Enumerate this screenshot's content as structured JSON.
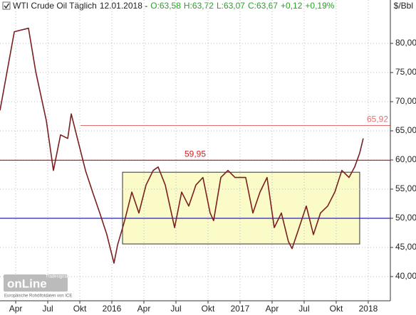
{
  "chart_data": {
    "type": "line",
    "title_parts": [
      {
        "text": "WTI Crude Oil Täglich",
        "color": "#222"
      },
      {
        "text": "12.01.2018 -",
        "color": "#222"
      },
      {
        "text": "O:63,58",
        "color": "#2aa02a"
      },
      {
        "text": "H:63,72",
        "color": "#2aa02a"
      },
      {
        "text": "L:63,07",
        "color": "#2aa02a"
      },
      {
        "text": "C:63,67",
        "color": "#2aa02a"
      },
      {
        "text": "+0,12",
        "color": "#2aa02a"
      },
      {
        "text": "+0,19%",
        "color": "#2aa02a"
      }
    ],
    "unit_label": "$/Bbl",
    "x": [
      -1.47,
      -0.13,
      1.2,
      1.87,
      2.87,
      3.53,
      4.2,
      4.87,
      5.2,
      5.87,
      6.53,
      7.2,
      7.87,
      8.53,
      9.2,
      9.53,
      10.2,
      10.87,
      11.53,
      12.2,
      12.87,
      13.33,
      14,
      14.87,
      15.53,
      16.2,
      16.87,
      17.53,
      18.2,
      18.53,
      19.2,
      19.87,
      20.53,
      21.53,
      22.2,
      22.87,
      23.53,
      24.2,
      24.87,
      25.53,
      25.87,
      26.53,
      27.2,
      27.87,
      28.53,
      29.2,
      29.87,
      30.53,
      31.2,
      31.73,
      32.2,
      32.53
    ],
    "values": [
      68.5,
      82,
      82.6,
      75.2,
      66.7,
      58.2,
      64.3,
      63.7,
      67.9,
      63,
      58.2,
      54.5,
      50.9,
      47.2,
      42.3,
      45.4,
      49.6,
      54.5,
      50.9,
      55.7,
      58.2,
      58.8,
      55.7,
      48.4,
      54.5,
      52.1,
      55.7,
      57,
      50.9,
      49.6,
      57,
      58.2,
      57,
      57,
      50.9,
      54.5,
      57,
      48.4,
      50.9,
      46,
      44.8,
      48.4,
      52.1,
      47.2,
      50.9,
      52.1,
      54.5,
      58.2,
      57,
      58.8,
      61.2,
      63.7
    ],
    "color": "#7a1f1f",
    "xlim": [
      -1.47,
      35.07
    ],
    "ylim": [
      35.85,
      87.44
    ],
    "xticks": [
      {
        "value": 0,
        "label": "Apr"
      },
      {
        "value": 3,
        "label": "Jul"
      },
      {
        "value": 6,
        "label": "Okt"
      },
      {
        "value": 9,
        "label": "2016"
      },
      {
        "value": 12,
        "label": "Apr"
      },
      {
        "value": 15,
        "label": "Jul"
      },
      {
        "value": 18,
        "label": "Okt"
      },
      {
        "value": 21,
        "label": "2017"
      },
      {
        "value": 24,
        "label": "Apr"
      },
      {
        "value": 27,
        "label": "Jul"
      },
      {
        "value": 30,
        "label": "Okt"
      },
      {
        "value": 33,
        "label": "2018"
      }
    ],
    "yticks": [
      {
        "value": 40,
        "label": "40,00"
      },
      {
        "value": 45,
        "label": "45,00"
      },
      {
        "value": 50,
        "label": "50,00"
      },
      {
        "value": 55,
        "label": "55,00"
      },
      {
        "value": 60,
        "label": "60,00"
      },
      {
        "value": 65,
        "label": "65,00"
      },
      {
        "value": 70,
        "label": "70,00"
      },
      {
        "value": 75,
        "label": "75,00"
      },
      {
        "value": 80,
        "label": "80,00"
      }
    ],
    "grid": true,
    "levels": [
      {
        "value": 59.95,
        "label": "59,95",
        "color": "#d42020",
        "start": -1.47
      },
      {
        "value": 65.92,
        "label": "65,92",
        "color": "#e07070",
        "start": 6.07
      },
      {
        "value": 50,
        "color": "#2020c0",
        "start": -1.47
      }
    ],
    "range_box": {
      "x": [
        10,
        32.2
      ],
      "y": [
        45.6,
        57.9
      ],
      "color": "#fbfbc8"
    },
    "logo": "onLine",
    "logo_sub": "Tradesignal",
    "source": "Europäische Rohölfotdaten von ICE"
  }
}
